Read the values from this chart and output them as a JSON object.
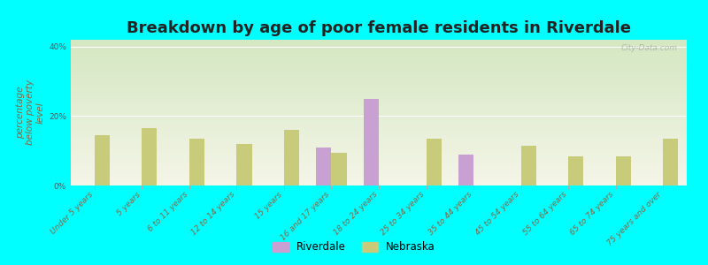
{
  "title": "Breakdown by age of poor female residents in Riverdale",
  "ylabel": "percentage\nbelow poverty\nlevel",
  "categories": [
    "Under 5 years",
    "5 years",
    "6 to 11 years",
    "12 to 14 years",
    "15 years",
    "16 and 17 years",
    "18 to 24 years",
    "25 to 34 years",
    "35 to 44 years",
    "45 to 54 years",
    "55 to 64 years",
    "65 to 74 years",
    "75 years and over"
  ],
  "nebraska_values": [
    14.5,
    16.5,
    13.5,
    12.0,
    16.0,
    9.5,
    0.0,
    13.5,
    0.0,
    11.5,
    8.5,
    8.5,
    13.5
  ],
  "riverdale_values": [
    0.0,
    0.0,
    0.0,
    0.0,
    0.0,
    11.0,
    25.0,
    0.0,
    9.0,
    0.0,
    0.0,
    0.0,
    0.0
  ],
  "nebraska_color": "#c8cc7a",
  "riverdale_color": "#c8a0d2",
  "background_top": "#d4e8c2",
  "background_bottom": "#f5f5e8",
  "plot_bg": "#00ffff",
  "ylim": [
    0,
    42
  ],
  "yticks": [
    0,
    20,
    40
  ],
  "ytick_labels": [
    "0%",
    "20%",
    "40%"
  ],
  "title_fontsize": 13,
  "axis_label_fontsize": 7.5,
  "tick_fontsize": 6.5,
  "legend_fontsize": 8.5,
  "watermark": "City-Data.com"
}
